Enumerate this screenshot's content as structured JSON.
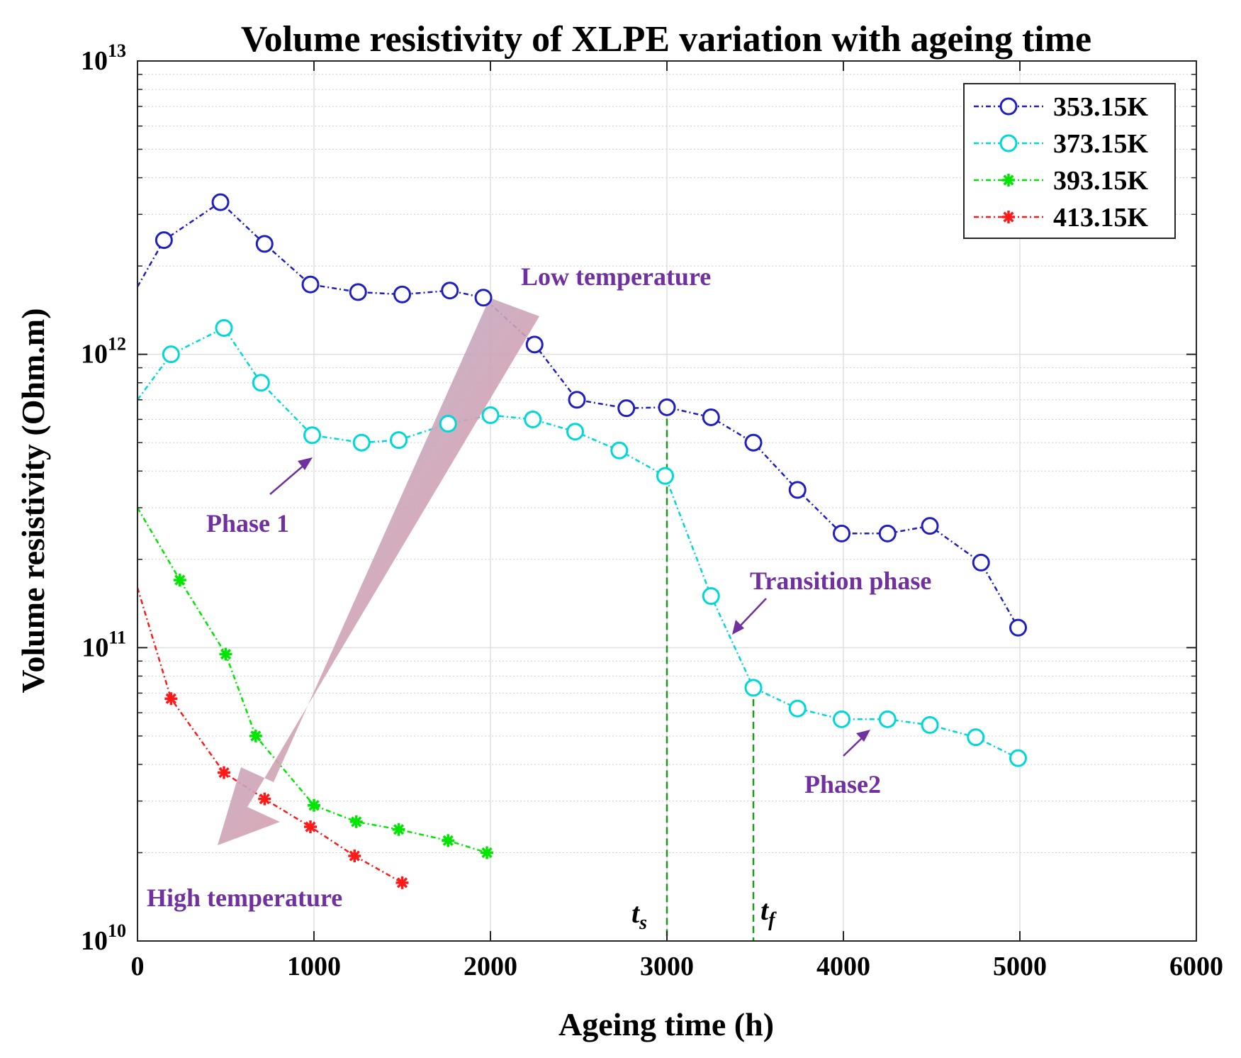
{
  "colors": {
    "background": "#ffffff",
    "plot_bg": "#ffffff",
    "grid_major": "#e0e0e0",
    "grid_minor": "#cfcfcf",
    "axis": "#262626",
    "annotation": "#7030a0",
    "marker_line": "#1a9a1a",
    "arrow_top": "#9dbde3",
    "arrow_bottom": "#ff8a8a"
  },
  "chart_data": {
    "type": "line",
    "title": "Volume resistivity of XLPE variation with ageing time",
    "xlabel": "Ageing time (h)",
    "ylabel": "Volume resistivity (Ohm.m)",
    "xscale": "linear",
    "yscale": "log",
    "xlim": [
      0,
      6000
    ],
    "ylim": [
      10000000000,
      10000000000000
    ],
    "grid": true,
    "legend_position": "top-right",
    "x_ticks": [
      {
        "value": 0,
        "label": "0"
      },
      {
        "value": 1000,
        "label": "1000"
      },
      {
        "value": 2000,
        "label": "2000"
      },
      {
        "value": 3000,
        "label": "3000"
      },
      {
        "value": 4000,
        "label": "4000"
      },
      {
        "value": 5000,
        "label": "5000"
      },
      {
        "value": 6000,
        "label": "6000"
      }
    ],
    "y_ticks": [
      {
        "exp": 10,
        "base": "10",
        "sup": "10"
      },
      {
        "exp": 11,
        "base": "10",
        "sup": "11"
      },
      {
        "exp": 12,
        "base": "10",
        "sup": "12"
      },
      {
        "exp": 13,
        "base": "10",
        "sup": "13"
      }
    ],
    "series": [
      {
        "name": "353.15K",
        "color": "#1f1fbf",
        "marker": "circle",
        "points": [
          [
            0,
            1700000000000.0
          ],
          [
            150,
            2450000000000.0
          ],
          [
            470,
            3300000000000.0
          ],
          [
            720,
            2380000000000.0
          ],
          [
            980,
            1730000000000.0
          ],
          [
            1250,
            1630000000000.0
          ],
          [
            1500,
            1600000000000.0
          ],
          [
            1770,
            1650000000000.0
          ],
          [
            1960,
            1560000000000.0
          ],
          [
            2250,
            1080000000000.0
          ],
          [
            2490,
            700000000000.0
          ],
          [
            2770,
            655000000000.0
          ],
          [
            3000,
            660000000000.0
          ],
          [
            3250,
            610000000000.0
          ],
          [
            3490,
            500000000000.0
          ],
          [
            3740,
            345000000000.0
          ],
          [
            3990,
            245000000000.0
          ],
          [
            4250,
            245000000000.0
          ],
          [
            4490,
            260000000000.0
          ],
          [
            4780,
            195000000000.0
          ],
          [
            4990,
            117000000000.0
          ]
        ]
      },
      {
        "name": "373.15K",
        "color": "#00d8d8",
        "marker": "circle",
        "points": [
          [
            0,
            700000000000.0
          ],
          [
            190,
            1000000000000.0
          ],
          [
            490,
            1230000000000.0
          ],
          [
            700,
            800000000000.0
          ],
          [
            990,
            530000000000.0
          ],
          [
            1270,
            500000000000.0
          ],
          [
            1480,
            510000000000.0
          ],
          [
            1760,
            580000000000.0
          ],
          [
            2000,
            620000000000.0
          ],
          [
            2240,
            600000000000.0
          ],
          [
            2480,
            545000000000.0
          ],
          [
            2730,
            470000000000.0
          ],
          [
            2990,
            385000000000.0
          ],
          [
            3250,
            150000000000.0
          ],
          [
            3490,
            73000000000.0
          ],
          [
            3740,
            62000000000.0
          ],
          [
            3990,
            57000000000.0
          ],
          [
            4250,
            57000000000.0
          ],
          [
            4490,
            54500000000.0
          ],
          [
            4750,
            49500000000.0
          ],
          [
            4990,
            42000000000.0
          ]
        ]
      },
      {
        "name": "393.15K",
        "color": "#00e600",
        "marker": "asterisk",
        "points": [
          [
            0,
            300000000000.0
          ],
          [
            240,
            170000000000.0
          ],
          [
            500,
            95000000000.0
          ],
          [
            670,
            50000000000.0
          ],
          [
            1000,
            29000000000.0
          ],
          [
            1240,
            25500000000.0
          ],
          [
            1480,
            24000000000.0
          ],
          [
            1760,
            22000000000.0
          ],
          [
            1980,
            20000000000.0
          ]
        ]
      },
      {
        "name": "413.15K",
        "color": "#ff1a1a",
        "marker": "asterisk",
        "points": [
          [
            0,
            160000000000.0
          ],
          [
            190,
            67000000000.0
          ],
          [
            490,
            37500000000.0
          ],
          [
            720,
            30500000000.0
          ],
          [
            980,
            24500000000.0
          ],
          [
            1230,
            19500000000.0
          ],
          [
            1500,
            15800000000.0
          ]
        ]
      }
    ],
    "vlines": [
      {
        "x": 3000,
        "y_top": 660000000000.0,
        "label_main": "t",
        "label_sub": "s"
      },
      {
        "x": 3490,
        "y_top": 73000000000.0,
        "label_main": "t",
        "label_sub": "f"
      }
    ],
    "annotations": {
      "low_temp": "Low temperature",
      "high_temp": "High temperature",
      "phase1": "Phase 1",
      "transition": "Transition phase",
      "phase2": "Phase2"
    }
  }
}
